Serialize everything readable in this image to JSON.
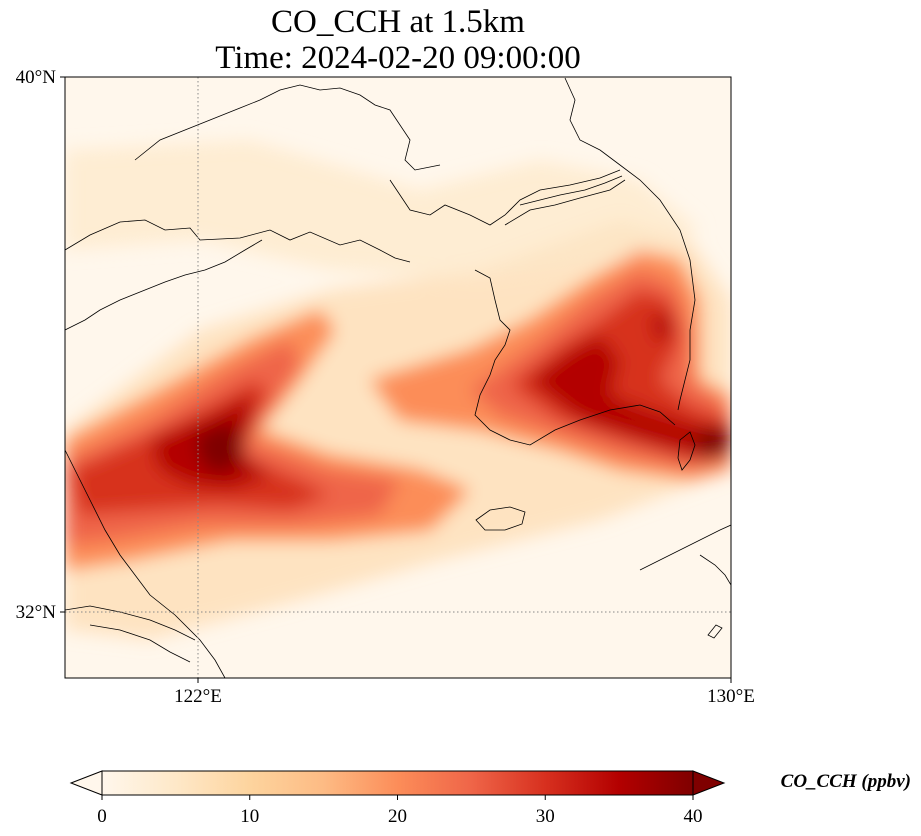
{
  "map": {
    "title_line1": "CO_CCH at 1.5km",
    "title_line2": "Time: 2024-02-20 09:00:00",
    "variable": "CO_CCH",
    "level": "1.5km",
    "time": "2024-02-20 09:00:00",
    "extent": {
      "lon_min": 119.7,
      "lon_max": 130.0,
      "lat_min": 31.0,
      "lat_max": 40.0
    },
    "lat_ticks": [
      {
        "value": 40,
        "label": "40°N"
      },
      {
        "value": 32,
        "label": "32°N"
      }
    ],
    "lon_ticks": [
      {
        "value": 122,
        "label": "122°E"
      },
      {
        "value": 130,
        "label": "130°E"
      }
    ],
    "gridlines": {
      "style": "dotted",
      "color": "#888888"
    },
    "coastline_color": "#000000"
  },
  "colorbar": {
    "label": "CO_CCH (ppbv)",
    "colormap": "OrRd",
    "extend": "both",
    "vmin": 0,
    "vmax": 40,
    "ticks": [
      {
        "value": 0,
        "label": "0"
      },
      {
        "value": 10,
        "label": "10"
      },
      {
        "value": 20,
        "label": "20"
      },
      {
        "value": 30,
        "label": "30"
      },
      {
        "value": 40,
        "label": "40"
      }
    ],
    "stops": [
      "#fff7ec",
      "#fee8c8",
      "#fdd49e",
      "#fdbb84",
      "#fc8d59",
      "#ef6548",
      "#d7301f",
      "#b30000",
      "#7f0000"
    ]
  }
}
